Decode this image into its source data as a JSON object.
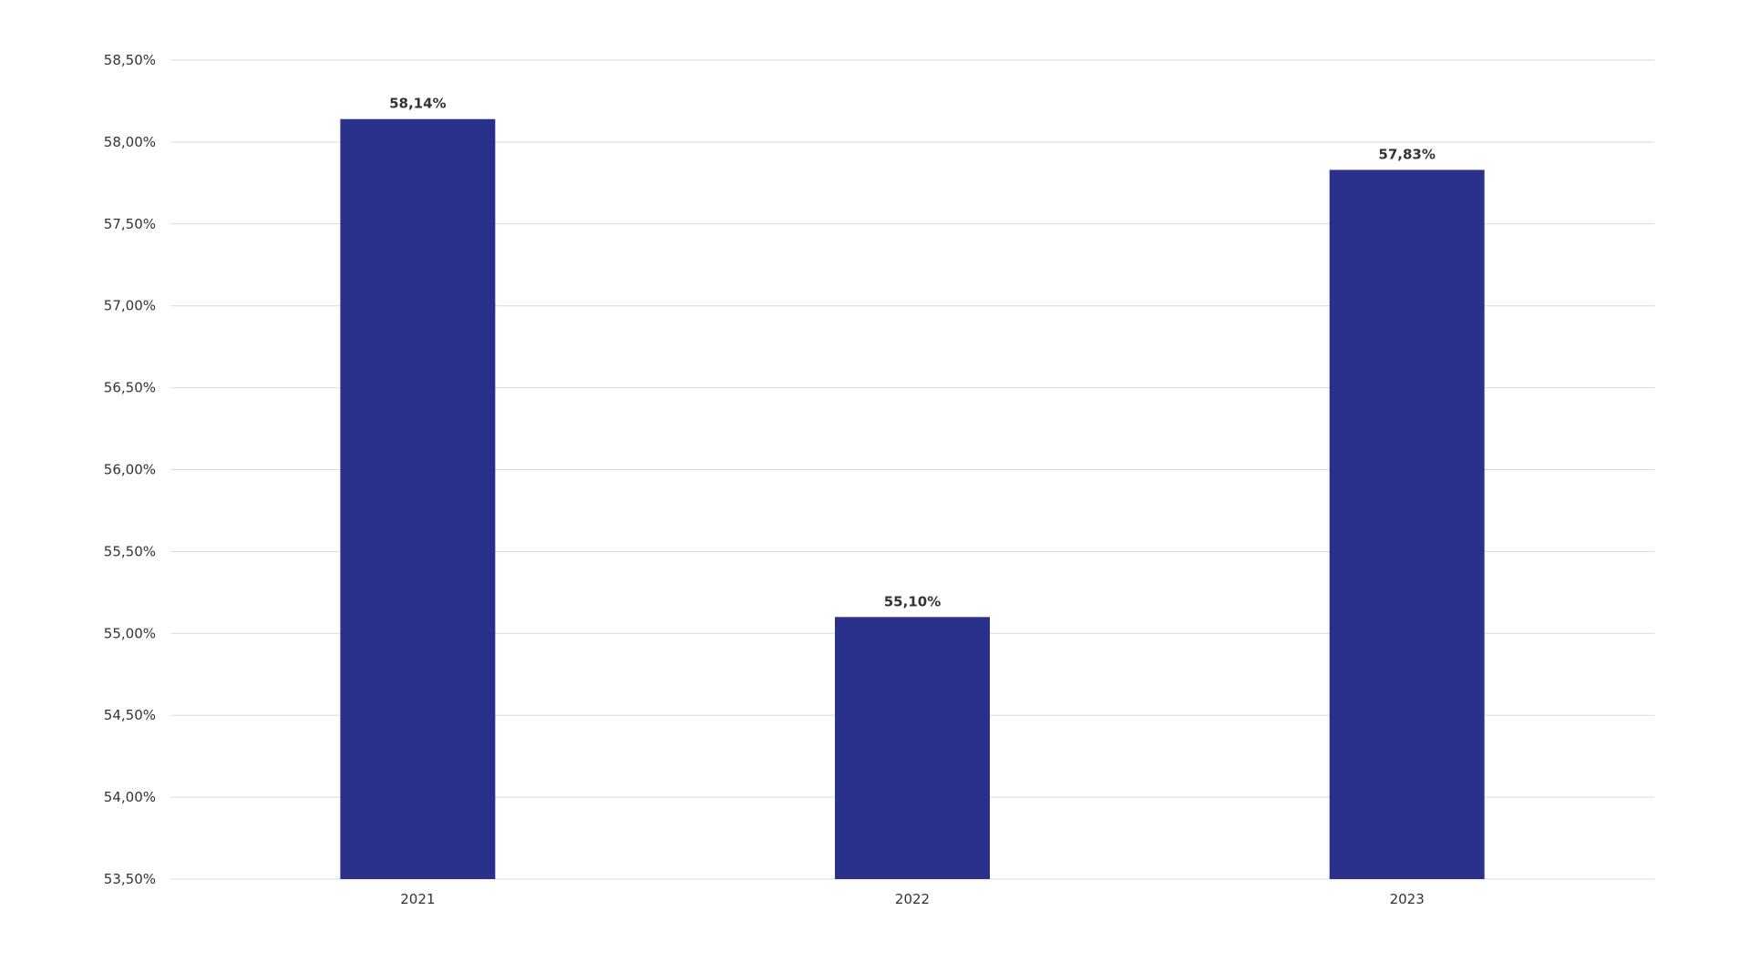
{
  "chart_data": {
    "type": "bar",
    "categories": [
      "2021",
      "2022",
      "2023"
    ],
    "values": [
      58.14,
      55.1,
      57.83
    ],
    "data_labels": [
      "58,14%",
      "55,10%",
      "57,83%"
    ],
    "title": "",
    "xlabel": "",
    "ylabel": "",
    "ylim": [
      53.5,
      58.5
    ],
    "yticks": [
      53.5,
      54.0,
      54.5,
      55.0,
      55.5,
      56.0,
      56.5,
      57.0,
      57.5,
      58.0,
      58.5
    ],
    "ytick_labels": [
      "53,50%",
      "54,00%",
      "54,50%",
      "55,00%",
      "55,50%",
      "56,00%",
      "56,50%",
      "57,00%",
      "57,50%",
      "58,00%",
      "58,50%"
    ],
    "grid": true,
    "legend": "none",
    "bar_color": "#2b318a"
  }
}
